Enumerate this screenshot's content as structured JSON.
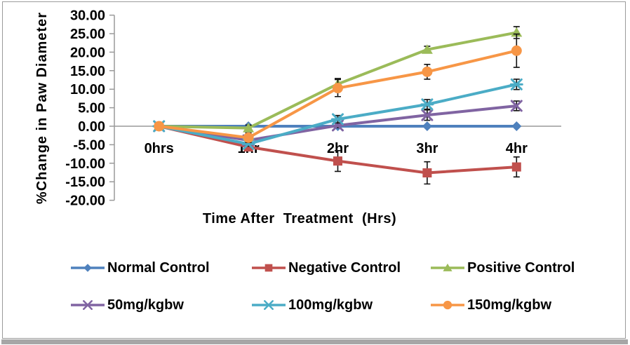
{
  "frame": {
    "border_color": "#9b9b9b",
    "bottom_bar_color": "#a6a6a6"
  },
  "chart_data": {
    "type": "line",
    "title": "",
    "xlabel": "Time After  Treatment  (Hrs)",
    "ylabel": "%Change in Paw Diameter",
    "categories": [
      "0hrs",
      "1hr",
      "2hr",
      "3hr",
      "4hr"
    ],
    "ylim": [
      -20,
      30
    ],
    "ytick_step": 5,
    "ytick_labels": [
      "30.00",
      "25.00",
      "20.00",
      "15.00",
      "10.00",
      "5.00",
      "0.00",
      "-5.00",
      "-10.00",
      "-15.00",
      "-20.00"
    ],
    "grid": "none",
    "axis_color": "#9a9a9a",
    "error_bar_color": "#111111",
    "legend_position": "bottom",
    "series": [
      {
        "name": "Normal Control",
        "color": "#4F81BD",
        "marker": "diamond",
        "values": [
          0,
          0,
          0,
          0,
          0
        ],
        "errors": [
          0,
          0,
          0,
          0,
          0
        ]
      },
      {
        "name": "Negative Control",
        "color": "#C0504D",
        "marker": "square",
        "values": [
          0,
          -5.6,
          -9.4,
          -12.6,
          -11.0
        ],
        "errors": [
          0,
          0.8,
          2.8,
          3.0,
          2.7
        ]
      },
      {
        "name": "Positive Control",
        "color": "#9BBB59",
        "marker": "triangle",
        "values": [
          0,
          -0.5,
          11.4,
          20.7,
          25.3
        ],
        "errors": [
          0,
          0.8,
          1.5,
          0.9,
          1.6
        ]
      },
      {
        "name": "50mg/kgbw",
        "color": "#8064A2",
        "marker": "x",
        "values": [
          0,
          -3.8,
          0.2,
          3.0,
          5.5
        ],
        "errors": [
          0,
          0.5,
          0.6,
          1.4,
          1.3
        ]
      },
      {
        "name": "100mg/kgbw",
        "color": "#4BACC6",
        "marker": "asterisk",
        "values": [
          0,
          -4.8,
          1.9,
          5.9,
          11.3
        ],
        "errors": [
          0,
          0.6,
          1.0,
          1.3,
          1.4
        ]
      },
      {
        "name": "150mg/kgbw",
        "color": "#F79646",
        "marker": "circle",
        "values": [
          0,
          -3.1,
          10.3,
          14.7,
          20.4
        ],
        "errors": [
          0,
          1.3,
          2.3,
          2.0,
          4.5
        ]
      }
    ]
  }
}
